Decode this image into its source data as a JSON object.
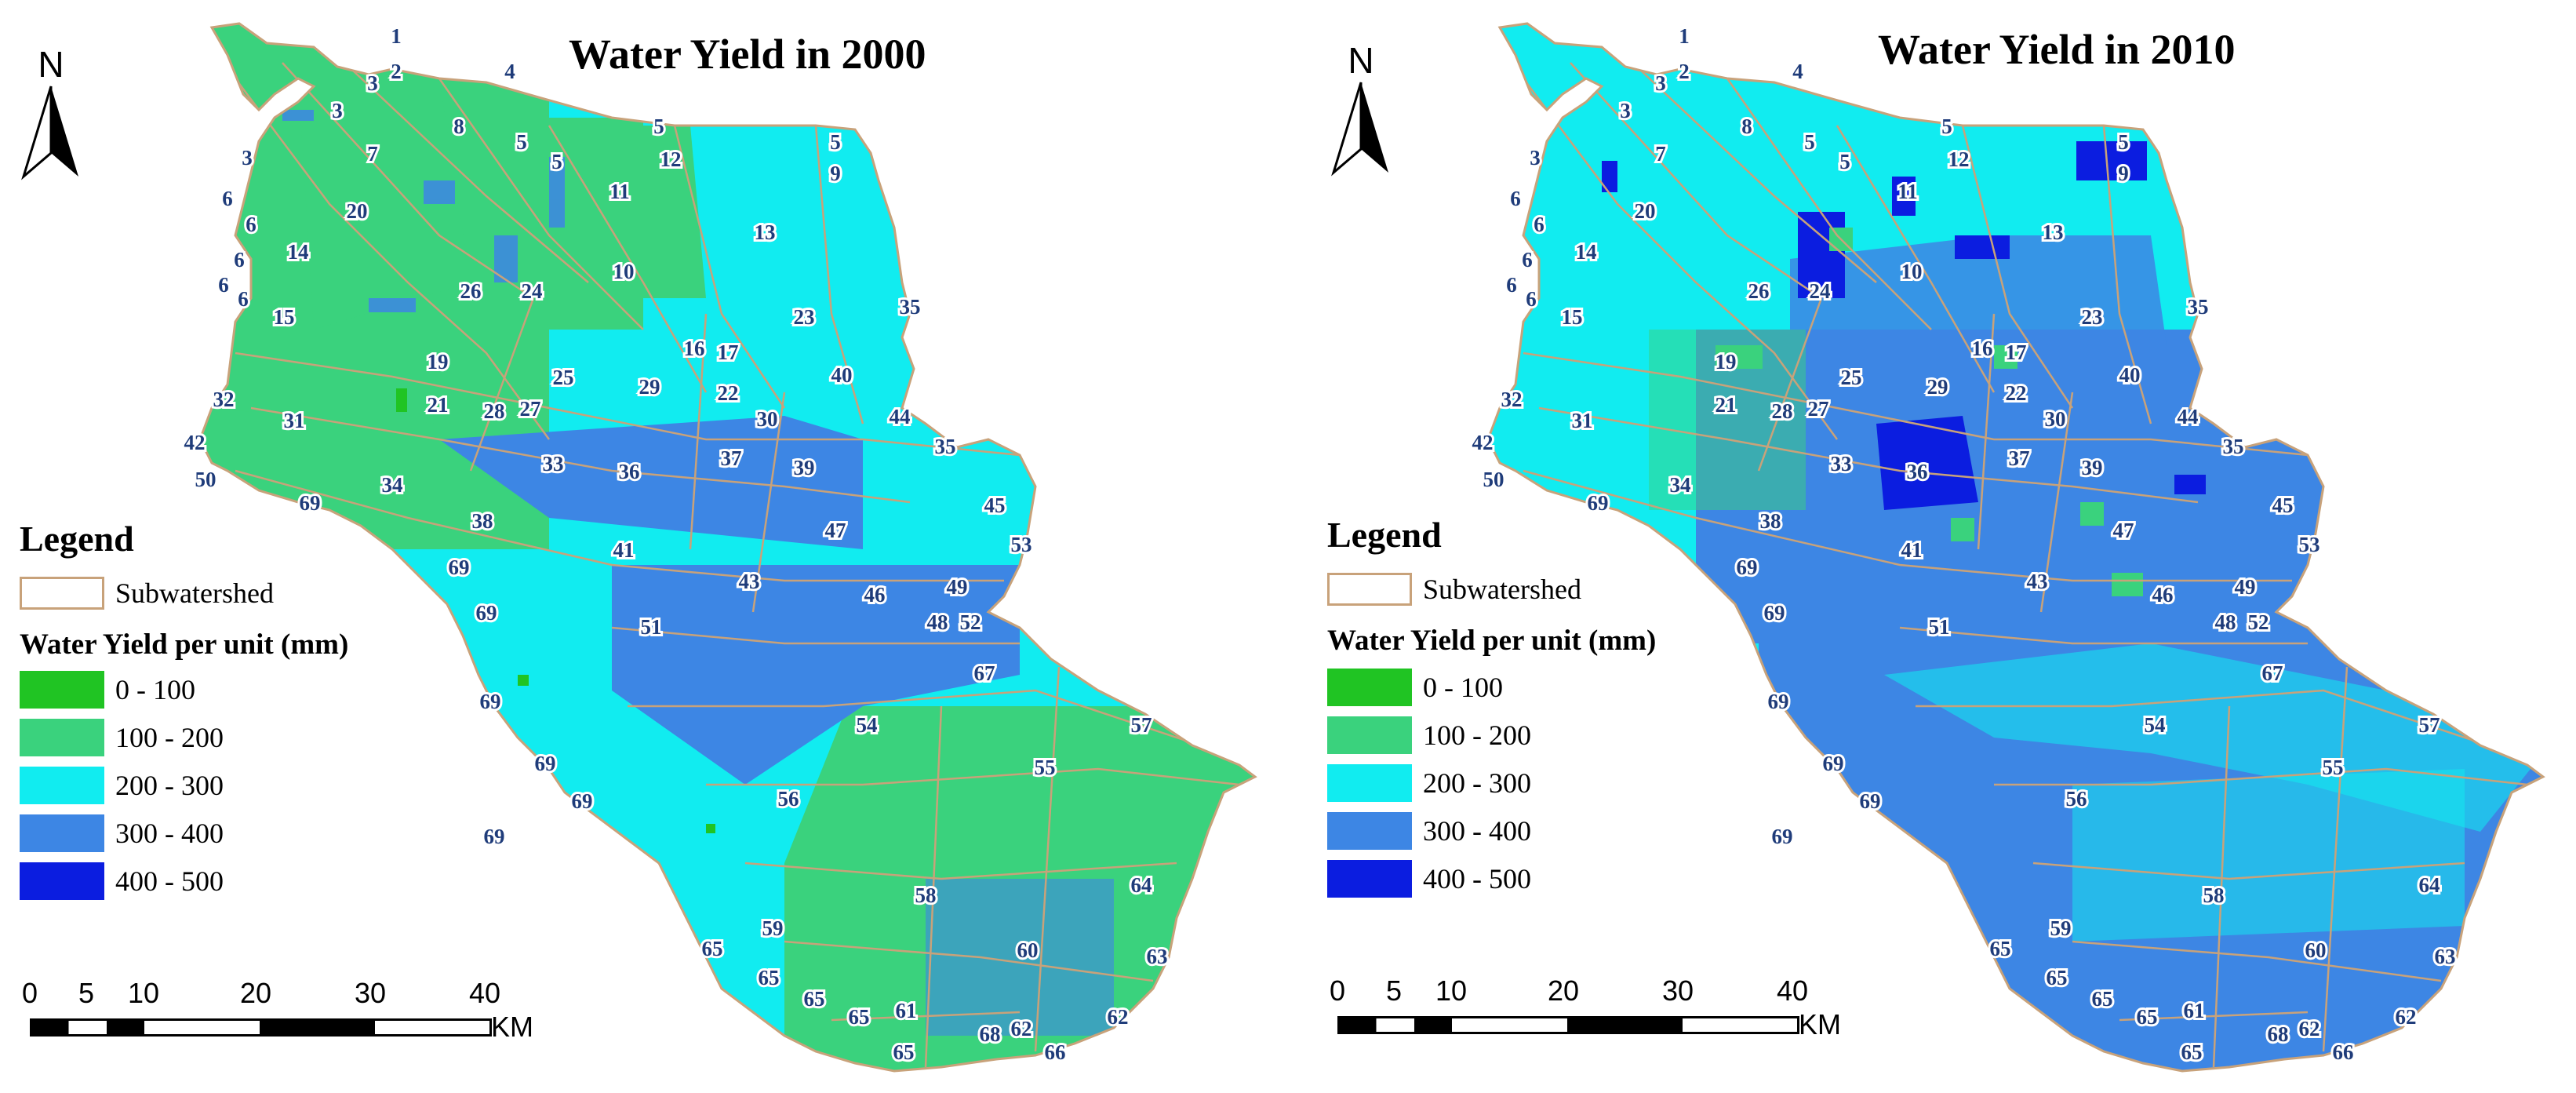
{
  "maps": [
    {
      "title": "Water Yield in 2000",
      "north_label": "N",
      "legend": {
        "title": "Legend",
        "boundary_label": "Subwatershed",
        "boundary_color": "#c8a27a",
        "subtitle": "Water Yield per unit (mm)",
        "classes": [
          {
            "range": "0 - 100",
            "color": "#20c423"
          },
          {
            "range": "100 - 200",
            "color": "#3ad27d"
          },
          {
            "range": "200 - 300",
            "color": "#11ecf0"
          },
          {
            "range": "300 - 400",
            "color": "#3d86e4"
          },
          {
            "range": "400 - 500",
            "color": "#0b1de0"
          }
        ]
      },
      "scale": {
        "ticks": [
          "0",
          "5",
          "10",
          "20",
          "30",
          "40"
        ],
        "unit": "KM"
      }
    },
    {
      "title": "Water Yield in 2010",
      "north_label": "N",
      "legend": {
        "title": "Legend",
        "boundary_label": "Subwatershed",
        "boundary_color": "#c8a27a",
        "subtitle": "Water Yield per unit (mm)",
        "classes": [
          {
            "range": "0 - 100",
            "color": "#20c423"
          },
          {
            "range": "100 - 200",
            "color": "#3ad27d"
          },
          {
            "range": "200 - 300",
            "color": "#11ecf0"
          },
          {
            "range": "300 - 400",
            "color": "#3d86e4"
          },
          {
            "range": "400 - 500",
            "color": "#0b1de0"
          }
        ]
      },
      "scale": {
        "ticks": [
          "0",
          "5",
          "10",
          "20",
          "30",
          "40"
        ],
        "unit": "KM"
      }
    }
  ],
  "subwatershed_labels": [
    "1",
    "2",
    "3",
    "3",
    "3",
    "4",
    "5",
    "5",
    "5",
    "5",
    "6",
    "6",
    "6",
    "6",
    "6",
    "7",
    "8",
    "9",
    "10",
    "11",
    "12",
    "13",
    "14",
    "15",
    "16",
    "17",
    "19",
    "20",
    "21",
    "22",
    "23",
    "24",
    "25",
    "26",
    "27",
    "28",
    "29",
    "30",
    "31",
    "32",
    "33",
    "34",
    "35",
    "35",
    "36",
    "37",
    "38",
    "39",
    "40",
    "41",
    "42",
    "43",
    "44",
    "45",
    "46",
    "47",
    "48",
    "49",
    "50",
    "51",
    "52",
    "53",
    "54",
    "55",
    "56",
    "57",
    "58",
    "59",
    "60",
    "61",
    "62",
    "62",
    "63",
    "64",
    "65",
    "65",
    "65",
    "65",
    "66",
    "67",
    "68",
    "69",
    "69",
    "69",
    "69",
    "69",
    "69",
    "69"
  ]
}
